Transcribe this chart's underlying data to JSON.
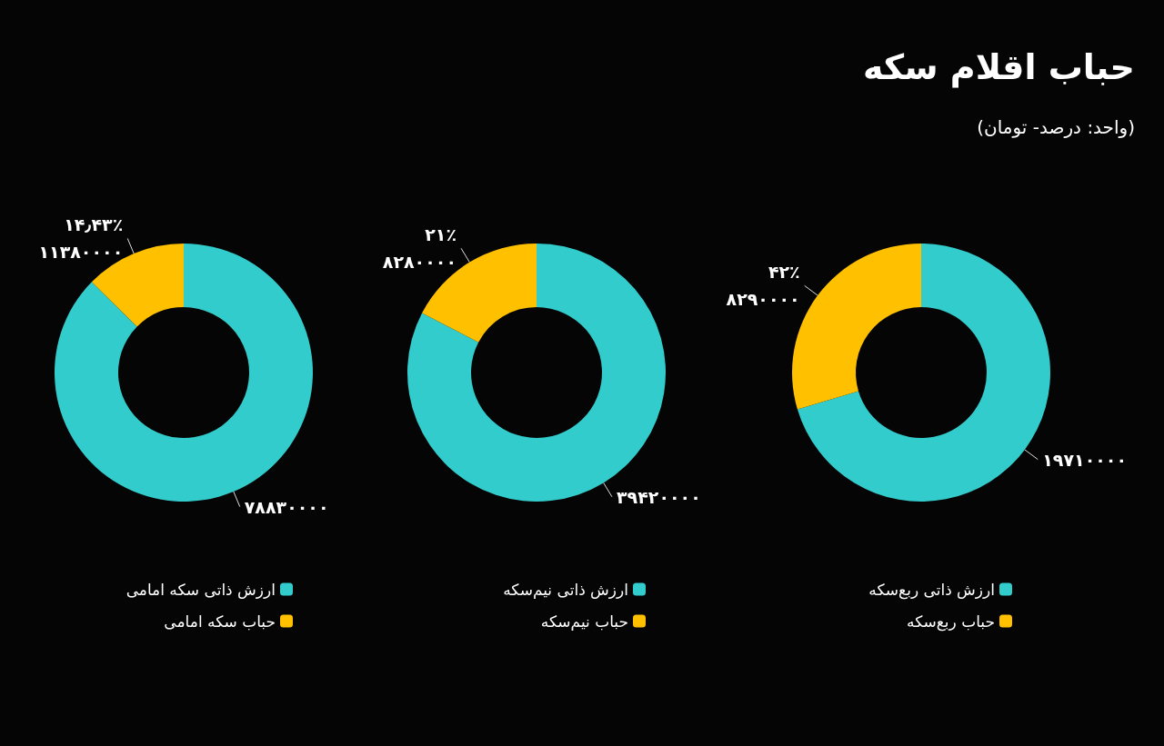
{
  "chart_data": [
    {
      "type": "donut",
      "title": "حباب اقلام سکه",
      "subtitle": "(واحد: درصد- تومان)",
      "categories": [
        "ارزش ذاتی ربع‌سکه",
        "حباب ربع‌سکه"
      ],
      "values": [
        19710000,
        8290000
      ],
      "colors": [
        "#33cccc",
        "#ffc000"
      ],
      "value_labels": [
        "۱۹۷۱۰۰۰۰",
        "۴۲٪\n۸۲۹۰۰۰۰"
      ],
      "legend": "bottom"
    },
    {
      "type": "donut",
      "categories": [
        "ارزش ذاتی نیم‌سکه",
        "حباب نیم‌سکه"
      ],
      "values": [
        39420000,
        8280000
      ],
      "colors": [
        "#33cccc",
        "#ffc000"
      ],
      "value_labels": [
        "۳۹۴۲۰۰۰۰",
        "۲۱٪\n۸۲۸۰۰۰۰"
      ],
      "legend": "bottom"
    },
    {
      "type": "donut",
      "categories": [
        "ارزش ذاتی سکه امامی",
        "حباب سکه امامی"
      ],
      "values": [
        78830000,
        11380000
      ],
      "colors": [
        "#33cccc",
        "#ffc000"
      ],
      "value_labels": [
        "۷۸۸۳۰۰۰۰",
        "۱۴٫۴۳٪\n۱۱۳۸۰۰۰۰"
      ],
      "legend": "bottom"
    }
  ]
}
